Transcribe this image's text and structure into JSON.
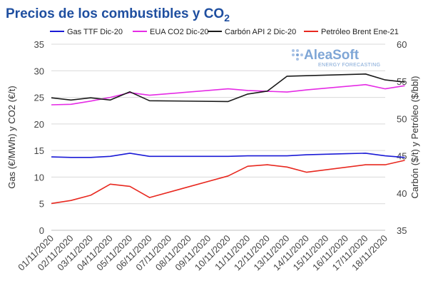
{
  "chart_data": {
    "type": "line",
    "title_main": "Precios de los combustibles y CO",
    "title_sub": "2",
    "categories": [
      "01/11/2020",
      "02/11/2020",
      "03/11/2020",
      "04/11/2020",
      "05/11/2020",
      "06/11/2020",
      "07/11/2020",
      "08/11/2020",
      "09/11/2020",
      "10/11/2020",
      "11/11/2020",
      "12/11/2020",
      "13/11/2020",
      "14/11/2020",
      "15/11/2020",
      "16/11/2020",
      "17/11/2020",
      "18/11/2020"
    ],
    "ylabel_left": "Gas (€/MWh) y CO2 (€/t)",
    "ylabel_right": "Carbón ($/t) y Petróleo ($/bbl)",
    "ylim_left": [
      0,
      35
    ],
    "ylim_right": [
      35,
      60
    ],
    "yticks_left": [
      "0",
      "5",
      "10",
      "15",
      "20",
      "25",
      "30",
      "35"
    ],
    "yticks_right": [
      "35",
      "40",
      "45",
      "50",
      "55",
      "60"
    ],
    "grid": "horizontal",
    "legend_position": "top",
    "series": [
      {
        "name": "Gas TTF Dic-20",
        "axis": "left",
        "color": "#1a1ad6",
        "points": [
          [
            0,
            13.8
          ],
          [
            1,
            13.7
          ],
          [
            2,
            13.7
          ],
          [
            3,
            13.9
          ],
          [
            4,
            14.5
          ],
          [
            5,
            13.9
          ],
          [
            9,
            13.9
          ],
          [
            10,
            14.0
          ],
          [
            12,
            14.0
          ],
          [
            13,
            14.2
          ],
          [
            15,
            14.4
          ],
          [
            16,
            14.5
          ],
          [
            17,
            14.0
          ],
          [
            18,
            13.7
          ]
        ]
      },
      {
        "name": "EUA CO2 Dic-20",
        "axis": "left",
        "color": "#e52be5",
        "points": [
          [
            0,
            23.6
          ],
          [
            1,
            23.7
          ],
          [
            2,
            24.3
          ],
          [
            3,
            25.0
          ],
          [
            4,
            25.9
          ],
          [
            5,
            25.4
          ],
          [
            9,
            26.6
          ],
          [
            10,
            26.3
          ],
          [
            12,
            26.0
          ],
          [
            13,
            26.4
          ],
          [
            16,
            27.4
          ],
          [
            17,
            26.6
          ],
          [
            18,
            27.2
          ]
        ]
      },
      {
        "name": "Carbón API 2 Dic-20",
        "axis": "right",
        "color": "#1a1a1a",
        "points": [
          [
            0,
            52.8
          ],
          [
            1,
            52.5
          ],
          [
            2,
            52.8
          ],
          [
            3,
            52.5
          ],
          [
            4,
            53.6
          ],
          [
            5,
            52.4
          ],
          [
            9,
            52.3
          ],
          [
            10,
            53.3
          ],
          [
            11,
            53.7
          ],
          [
            12,
            55.7
          ],
          [
            16,
            56.0
          ],
          [
            17,
            55.2
          ],
          [
            18,
            54.9
          ]
        ]
      },
      {
        "name": "Petróleo Brent Ene-21",
        "axis": "right",
        "color": "#e8281f",
        "points": [
          [
            0,
            38.6
          ],
          [
            1,
            39.0
          ],
          [
            2,
            39.7
          ],
          [
            3,
            41.2
          ],
          [
            4,
            40.9
          ],
          [
            5,
            39.4
          ],
          [
            9,
            42.3
          ],
          [
            10,
            43.6
          ],
          [
            11,
            43.8
          ],
          [
            12,
            43.5
          ],
          [
            13,
            42.8
          ],
          [
            16,
            43.8
          ],
          [
            17,
            43.8
          ],
          [
            18,
            44.4
          ]
        ]
      }
    ]
  },
  "logo": {
    "name": "AleaSoft",
    "tagline": "ENERGY FORECASTING"
  }
}
